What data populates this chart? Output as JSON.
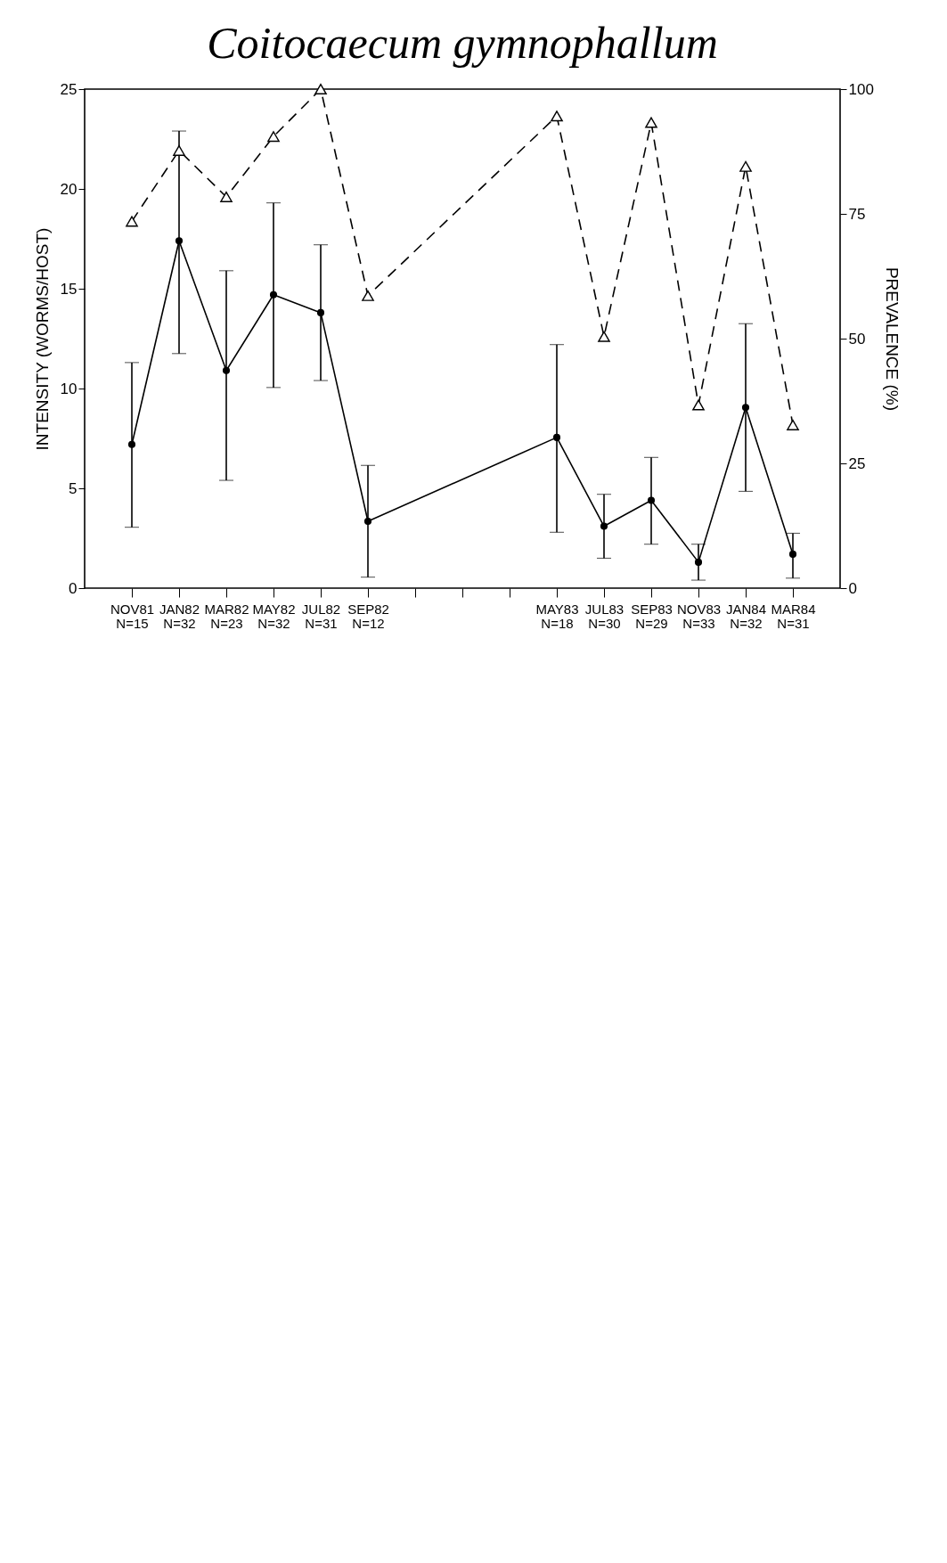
{
  "chart_data": {
    "type": "line",
    "title": "Coitocaecum gymnophallum",
    "ylabel": "INTENSITY (WORMS/HOST)",
    "y2label": "PREVALENCE (%)",
    "categories": [
      "NOV81\nN=15",
      "JAN82\nN=32",
      "MAR82\nN=23",
      "MAY82\nN=32",
      "JUL82\nN=31",
      "SEP82\nN=12",
      null,
      null,
      null,
      "MAY83\nN=18",
      "JUL83\nN=30",
      "SEP83\nN=29",
      "NOV83\nN=33",
      "JAN84\nN=32",
      "MAR84\nN=31"
    ],
    "series": [
      {
        "color": "#000000",
        "marker": "circle",
        "line_style": "solid",
        "values": [
          7.2,
          17.4,
          10.9,
          14.7,
          13.8,
          3.35,
          null,
          null,
          null,
          7.55,
          3.1,
          4.4,
          1.3,
          9.05,
          1.7
        ],
        "errors": [
          [
            3.05,
            11.3
          ],
          [
            11.75,
            22.9
          ],
          [
            5.4,
            15.9
          ],
          [
            10.05,
            19.3
          ],
          [
            10.4,
            17.2
          ],
          [
            0.55,
            6.15
          ],
          null,
          null,
          null,
          [
            2.8,
            12.2
          ],
          [
            1.5,
            4.7
          ],
          [
            2.2,
            6.55
          ],
          [
            0.4,
            2.2
          ],
          [
            4.85,
            13.25
          ],
          [
            0.5,
            2.75
          ]
        ]
      },
      {
        "axis": "y2",
        "color": "#000000",
        "marker": "triangle",
        "line_style": "dashed",
        "values": [
          73.5,
          87.7,
          78.4,
          90.5,
          100,
          58.6,
          null,
          null,
          null,
          94.6,
          50.4,
          93.3,
          36.7,
          84.5,
          32.7
        ]
      }
    ],
    "ylim": [
      0,
      25
    ],
    "yticks": [
      0,
      5,
      10,
      15,
      20,
      25
    ],
    "y2lim": [
      0,
      100
    ],
    "y2ticks": [
      0,
      25,
      50,
      75,
      100
    ]
  }
}
